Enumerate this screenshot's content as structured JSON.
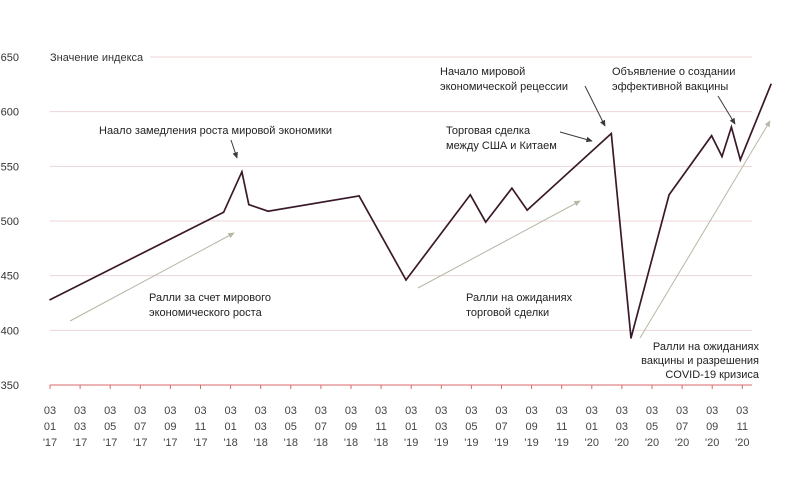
{
  "chart_data": {
    "type": "line",
    "ylabel": "Значение индекса",
    "ylim": [
      350,
      650
    ],
    "y_ticks": [
      650,
      600,
      550,
      500,
      450,
      400,
      350
    ],
    "grid": true,
    "x_tick_labels": [
      [
        "03",
        "01",
        "'17"
      ],
      [
        "03",
        "03",
        "'17"
      ],
      [
        "03",
        "05",
        "'17"
      ],
      [
        "03",
        "07",
        "'17"
      ],
      [
        "03",
        "09",
        "'17"
      ],
      [
        "03",
        "11",
        "'17"
      ],
      [
        "03",
        "01",
        "'18"
      ],
      [
        "03",
        "03",
        "'18"
      ],
      [
        "03",
        "05",
        "'18"
      ],
      [
        "03",
        "07",
        "'18"
      ],
      [
        "03",
        "09",
        "'18"
      ],
      [
        "03",
        "11",
        "'18"
      ],
      [
        "03",
        "01",
        "'19"
      ],
      [
        "03",
        "03",
        "'19"
      ],
      [
        "03",
        "05",
        "'19"
      ],
      [
        "03",
        "07",
        "'19"
      ],
      [
        "03",
        "09",
        "'19"
      ],
      [
        "03",
        "11",
        "'19"
      ],
      [
        "03",
        "01",
        "'20"
      ],
      [
        "03",
        "03",
        "'20"
      ],
      [
        "03",
        "05",
        "'20"
      ],
      [
        "03",
        "07",
        "'20"
      ],
      [
        "03",
        "09",
        "'20"
      ],
      [
        "03",
        "11",
        "'20"
      ]
    ],
    "series": [
      {
        "color": "#3a1a2a",
        "points": [
          {
            "x": "2017-01-03",
            "y": 428
          },
          {
            "x": "2017-12-20",
            "y": 508
          },
          {
            "x": "2018-01-26",
            "y": 545
          },
          {
            "x": "2018-02-09",
            "y": 515
          },
          {
            "x": "2018-03-20",
            "y": 509
          },
          {
            "x": "2018-09-20",
            "y": 523
          },
          {
            "x": "2018-12-24",
            "y": 446
          },
          {
            "x": "2019-05-03",
            "y": 524
          },
          {
            "x": "2019-06-03",
            "y": 499
          },
          {
            "x": "2019-07-26",
            "y": 530
          },
          {
            "x": "2019-08-26",
            "y": 510
          },
          {
            "x": "2020-02-12",
            "y": 580
          },
          {
            "x": "2020-03-23",
            "y": 393
          },
          {
            "x": "2020-06-08",
            "y": 524
          },
          {
            "x": "2020-09-02",
            "y": 578
          },
          {
            "x": "2020-09-23",
            "y": 559
          },
          {
            "x": "2020-10-12",
            "y": 586
          },
          {
            "x": "2020-10-30",
            "y": 556
          },
          {
            "x": "2020-12-31",
            "y": 625
          }
        ]
      }
    ],
    "annotations": [
      {
        "lines": [
          "Наало замедления роста мировой экономики"
        ]
      },
      {
        "lines": [
          "Торговая сделка",
          "между США и Китаем"
        ]
      },
      {
        "lines": [
          "Начало мировой",
          "экономической рецессии"
        ]
      },
      {
        "lines": [
          "Объявление о создании",
          "эффективной вакцины"
        ]
      },
      {
        "lines": [
          "Ралли за счет мирового",
          "экономического роста"
        ]
      },
      {
        "lines": [
          "Ралли на ожиданиях",
          "торговой сделки"
        ]
      },
      {
        "lines": [
          "Ралли на ожиданиях",
          "вакцины и разрешения",
          "COVID-19 кризиса"
        ]
      }
    ],
    "colors": {
      "line": "#3a1a2a",
      "grid": "#ecd4d4",
      "axis": "#d96a6a",
      "trend_arrow": "#b5b8a6",
      "pointer_arrow": "#3a3a3a"
    }
  }
}
